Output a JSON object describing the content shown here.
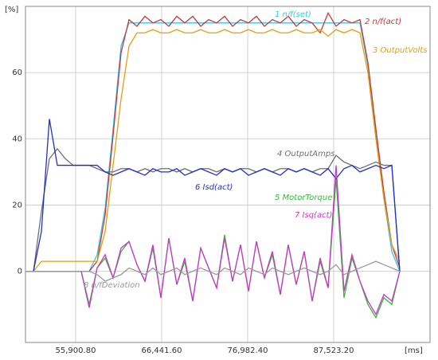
{
  "chart_data": {
    "type": "line",
    "y_label": "[%]",
    "x_label": "[ms]",
    "xlim": [
      49752,
      99333
    ],
    "ylim": [
      -21.5,
      80
    ],
    "xticks": [
      {
        "value": 55900.8,
        "label": "55,900.80"
      },
      {
        "value": 66441.6,
        "label": "66,441.60"
      },
      {
        "value": 76982.4,
        "label": "76,982.40"
      },
      {
        "value": 87523.2,
        "label": "87,523.20"
      }
    ],
    "yticks": [
      0,
      20,
      40,
      60
    ],
    "grid": true,
    "x": [
      49752,
      50728,
      51704,
      52680,
      53656,
      54632,
      55608,
      56584,
      57560,
      58536,
      59512,
      60488,
      61464,
      62440,
      63416,
      64392,
      65368,
      66344,
      67320,
      68296,
      69272,
      70248,
      71224,
      72200,
      73176,
      74152,
      75128,
      76104,
      77080,
      78056,
      79032,
      80008,
      80984,
      81960,
      82936,
      83912,
      84888,
      85864,
      86840,
      87816,
      88792,
      89768,
      90744,
      91720,
      92696,
      93672,
      94648,
      95624
    ],
    "series": [
      {
        "name": "1  n/f(set)",
        "color": "#33c8e8",
        "values": [
          0,
          0,
          0,
          0,
          0,
          0,
          0,
          0,
          0,
          5,
          19,
          43,
          68,
          75,
          75,
          75,
          75,
          75,
          75,
          75,
          75,
          75,
          75,
          75,
          75,
          75,
          75,
          75,
          75,
          75,
          75,
          75,
          75,
          75,
          75,
          75,
          75,
          75,
          75,
          75,
          75,
          75,
          75,
          62,
          42,
          22,
          6,
          0
        ]
      },
      {
        "name": "2  n/f(act)",
        "color": "#c83838",
        "values": [
          0,
          0,
          0,
          0,
          0,
          0,
          0,
          0,
          0,
          3,
          17,
          41,
          66,
          76,
          74,
          77,
          75,
          76,
          74,
          77,
          75,
          77,
          74,
          76,
          75,
          77,
          74,
          76,
          75,
          77,
          74,
          76,
          75,
          77,
          74,
          76,
          75,
          72,
          78,
          74,
          76,
          75,
          76,
          63,
          43,
          24,
          8,
          1
        ]
      },
      {
        "name": "3  OutputVolts",
        "color": "#e0a010",
        "values": [
          0,
          0,
          3,
          3,
          3,
          3,
          3,
          3,
          3,
          3,
          12,
          32,
          52,
          68,
          72,
          72,
          73,
          72,
          72,
          73,
          72,
          72,
          73,
          72,
          72,
          73,
          72,
          72,
          73,
          72,
          72,
          73,
          72,
          72,
          73,
          72,
          72,
          73,
          71,
          73,
          72,
          73,
          72,
          60,
          40,
          22,
          8,
          3
        ]
      },
      {
        "name": "4  OutputAmps",
        "color": "#707070",
        "values": [
          0,
          0,
          18,
          34,
          37,
          34,
          32,
          32,
          32,
          31,
          30,
          30,
          31,
          31,
          30,
          31,
          30,
          31,
          31,
          30,
          31,
          30,
          31,
          31,
          30,
          31,
          30,
          31,
          31,
          30,
          31,
          30,
          31,
          31,
          30,
          31,
          30,
          31,
          31,
          35,
          33,
          32,
          31,
          32,
          33,
          32,
          32,
          0
        ]
      },
      {
        "name": "5  MotorTorque",
        "color": "#38b838",
        "values": [
          0,
          0,
          0,
          0,
          0,
          0,
          0,
          0,
          -10,
          1,
          4,
          -2,
          6,
          9,
          2,
          -3,
          7,
          -8,
          10,
          -4,
          3,
          -9,
          7,
          1,
          -5,
          11,
          -3,
          8,
          -6,
          9,
          -2,
          5,
          -7,
          8,
          -4,
          6,
          -9,
          3,
          -5,
          28,
          -8,
          4,
          -3,
          -10,
          -14,
          -8,
          -10,
          0
        ]
      },
      {
        "name": "6  Isd(act)",
        "color": "#2030c8",
        "values": [
          0,
          0,
          12,
          46,
          32,
          32,
          32,
          32,
          32,
          32,
          30,
          29,
          30,
          31,
          30,
          29,
          31,
          30,
          30,
          31,
          29,
          30,
          31,
          30,
          29,
          31,
          30,
          31,
          29,
          30,
          31,
          30,
          29,
          31,
          30,
          31,
          30,
          29,
          31,
          28,
          31,
          32,
          30,
          31,
          32,
          31,
          32,
          0
        ]
      },
      {
        "name": "7  Isq(act)",
        "color": "#c838c8",
        "values": [
          0,
          0,
          0,
          0,
          0,
          0,
          0,
          0,
          -11,
          1,
          5,
          -2,
          7,
          9,
          2,
          -3,
          8,
          -8,
          10,
          -4,
          4,
          -9,
          7,
          1,
          -5,
          10,
          -3,
          8,
          -6,
          9,
          -2,
          6,
          -7,
          8,
          -4,
          6,
          -9,
          4,
          -5,
          32,
          -6,
          5,
          -3,
          -9,
          -13,
          -7,
          -9,
          0
        ]
      },
      {
        "name": "8  n/fDeviation",
        "color": "#999999",
        "values": [
          0,
          0,
          0,
          0,
          0,
          0,
          0,
          0,
          0,
          -1,
          -3,
          -2,
          -1,
          1,
          0,
          -1,
          1,
          -1,
          0,
          1,
          -1,
          0,
          1,
          0,
          -1,
          1,
          0,
          -1,
          1,
          0,
          -1,
          1,
          0,
          -1,
          0,
          1,
          0,
          -1,
          0,
          2,
          -1,
          0,
          1,
          2,
          3,
          2,
          1,
          0
        ]
      }
    ]
  }
}
